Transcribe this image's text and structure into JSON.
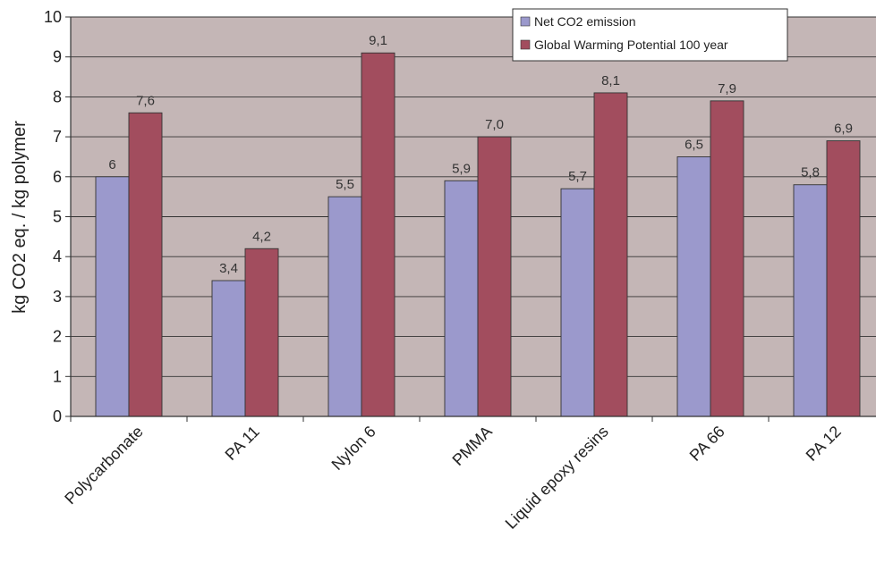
{
  "chart_data": {
    "type": "bar",
    "title": "",
    "xlabel": "",
    "ylabel": "kg CO2 eq. / kg polymer",
    "ylim": [
      0,
      10
    ],
    "yticks": [
      "0",
      "1",
      "2",
      "3",
      "4",
      "5",
      "6",
      "7",
      "8",
      "9",
      "10"
    ],
    "grid": true,
    "legend_position": "top-right",
    "categories": [
      "Polycarbonate",
      "PA 11",
      "Nylon 6",
      "PMMA",
      "Liquid epoxy resins",
      "PA 66",
      "PA 12"
    ],
    "series": [
      {
        "name": "Net CO2 emission",
        "color": "#9b99cc",
        "values": [
          6,
          3.4,
          5.5,
          5.9,
          5.7,
          6.5,
          5.8
        ],
        "labels": [
          "6",
          "3,4",
          "5,5",
          "5,9",
          "5,7",
          "6,5",
          "5,8"
        ]
      },
      {
        "name": "Global Warming Potential 100 year",
        "color": "#a24d5e",
        "values": [
          7.6,
          4.2,
          9.1,
          7.0,
          8.1,
          7.9,
          6.9
        ],
        "labels": [
          "7,6",
          "4,2",
          "9,1",
          "7,0",
          "8,1",
          "7,9",
          "6,9"
        ]
      }
    ],
    "plot_background": "#c4b6b6"
  }
}
